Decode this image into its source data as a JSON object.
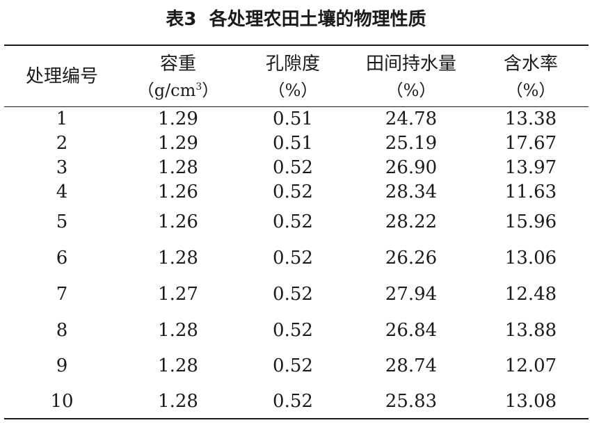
{
  "caption": "表3  各处理农田土壤的物理性质",
  "headers": [
    {
      "line1": "处理编号",
      "line2": ""
    },
    {
      "line1": "容重",
      "line2_pre": "（g/cm",
      "line2_sup": "3",
      "line2_post": "）"
    },
    {
      "line1": "孔隙度",
      "line2": "（%）"
    },
    {
      "line1": "田间持水量",
      "line2": "（%）"
    },
    {
      "line1": "含水率",
      "line2": "（%）"
    }
  ],
  "rows": [
    [
      "1",
      "1.29",
      "0.51",
      "24.78",
      "13.38"
    ],
    [
      "2",
      "1.29",
      "0.51",
      "25.19",
      "17.67"
    ],
    [
      "3",
      "1.28",
      "0.52",
      "26.90",
      "13.97"
    ],
    [
      "4",
      "1.26",
      "0.52",
      "28.34",
      "11.63"
    ],
    [
      "5",
      "1.26",
      "0.52",
      "28.22",
      "15.96"
    ],
    [
      "6",
      "1.28",
      "0.52",
      "26.26",
      "13.06"
    ],
    [
      "7",
      "1.27",
      "0.52",
      "27.94",
      "12.48"
    ],
    [
      "8",
      "1.28",
      "0.52",
      "26.84",
      "13.88"
    ],
    [
      "9",
      "1.28",
      "0.52",
      "28.74",
      "12.07"
    ],
    [
      "10",
      "1.28",
      "0.52",
      "25.83",
      "13.08"
    ]
  ]
}
